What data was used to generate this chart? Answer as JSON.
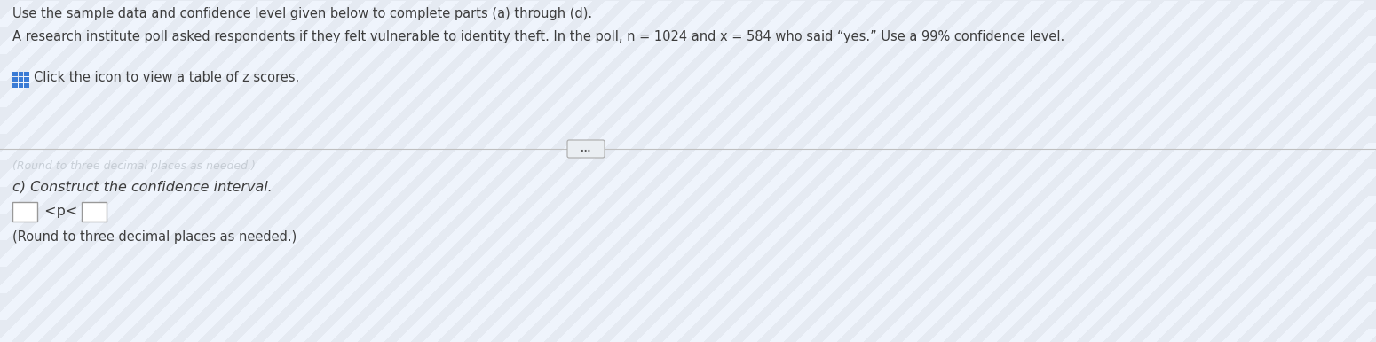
{
  "line1": "Use the sample data and confidence level given below to complete parts (a) through (d).",
  "line2": "A research institute poll asked respondents if they felt vulnerable to identity theft. In the poll, n = 1024 and x = 584 who said “yes.” Use a 99% confidence level.",
  "line3_text": "Click the icon to view a table of z scores.",
  "divider_dots": "...",
  "faded_text": "(Round to three decimal places as needed.)",
  "part_c_label": "c) Construct the confidence interval.",
  "inequality": "<p<",
  "round_note": "(Round to three decimal places as needed.)",
  "bg_color_top": "#dce6ef",
  "bg_color_mid": "#e8ecf0",
  "bg_color_bot": "#dde8f0",
  "text_color": "#3d3d3d",
  "line_color": "#c0c0c0",
  "box_color": "#ffffff",
  "icon_color": "#3a7bd5",
  "faded_color": "#b0b8c0"
}
